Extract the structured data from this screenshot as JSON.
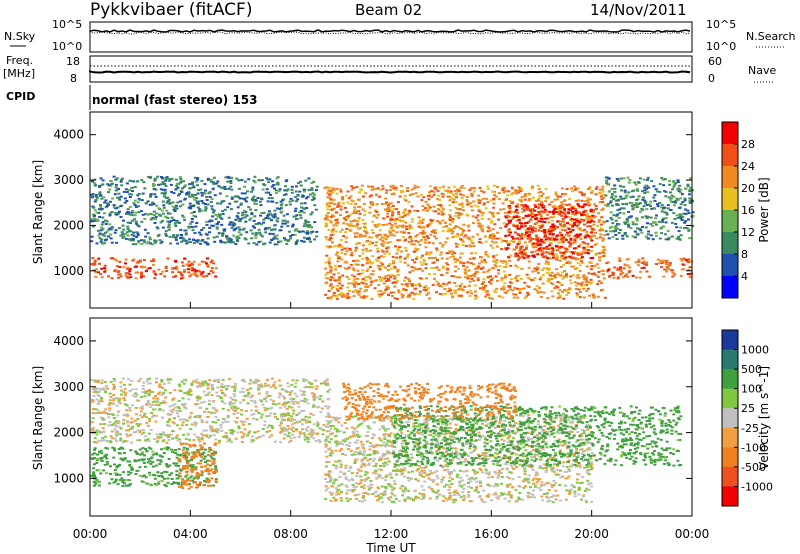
{
  "header": {
    "title": "Pykkvibaer (fitACF)",
    "beam": "Beam 02",
    "date": "14/Nov/2011"
  },
  "params": {
    "nsky_label": "N.Sky",
    "nsearch_label": "N.Search",
    "nsky_ticks": [
      "10^5",
      "10^0"
    ],
    "nsearch_ticks": [
      "10^5",
      "10^0"
    ],
    "freq_label": "Freq.",
    "freq_unit": "[MHz]",
    "freq_ticks": [
      "18",
      "8"
    ],
    "nave_label": "Nave",
    "nave_ticks": [
      "60",
      "0"
    ],
    "cpid_label": "CPID",
    "cpid_text": "normal (fast stereo) 153"
  },
  "axes": {
    "ylabel": "Slant Range [km]",
    "yticks": [
      "4000",
      "3000",
      "2000",
      "1000"
    ],
    "xticks": [
      "00:00",
      "04:00",
      "08:00",
      "12:00",
      "16:00",
      "20:00",
      "00:00"
    ],
    "xlabel": "Time UT"
  },
  "colors": {
    "power": [
      "#0000ff",
      "#2050b0",
      "#3a8a60",
      "#68b050",
      "#e8c020",
      "#f08a20",
      "#f05018",
      "#f00000"
    ],
    "velocity": [
      "#1a3a9a",
      "#2a7a70",
      "#40a040",
      "#80c840",
      "#c0c0c0",
      "#f0a040",
      "#f08020",
      "#f05020",
      "#f00000"
    ],
    "ground_scatter": "#c0c0c0"
  },
  "chart_data": [
    {
      "type": "heatmap",
      "title": "Power",
      "ylabel": "Slant Range [km]",
      "xlabel": "",
      "xlim": [
        0,
        24
      ],
      "ylim": [
        180,
        4500
      ],
      "colorbar": {
        "label": "Power [dB]",
        "range": [
          0,
          32
        ],
        "ticks": [
          "28",
          "24",
          "20",
          "16",
          "12",
          "8",
          "4"
        ]
      },
      "echo_regions": [
        {
          "t": [
            0.0,
            5.0
          ],
          "range_km": [
            850,
            1300
          ],
          "value_db": 26
        },
        {
          "t": [
            0.0,
            9.0
          ],
          "range_km": [
            1600,
            3100
          ],
          "value_db": 9
        },
        {
          "t": [
            9.3,
            20.5
          ],
          "range_km": [
            400,
            2900
          ],
          "value_db": 22
        },
        {
          "t": [
            16.5,
            20.0
          ],
          "range_km": [
            1300,
            2500
          ],
          "value_db": 29
        },
        {
          "t": [
            20.5,
            24.0
          ],
          "range_km": [
            850,
            1300
          ],
          "value_db": 25
        },
        {
          "t": [
            20.5,
            24.0
          ],
          "range_km": [
            1700,
            3100
          ],
          "value_db": 10
        }
      ]
    },
    {
      "type": "heatmap",
      "title": "Velocity",
      "ylabel": "Slant Range [km]",
      "xlabel": "Time UT",
      "xlim": [
        0,
        24
      ],
      "ylim": [
        180,
        4500
      ],
      "colorbar": {
        "label": "Velocity [m s^-1]",
        "ticks": [
          "1000",
          "500",
          "100",
          "25",
          "-25",
          "-100",
          "-500",
          "-1000"
        ]
      },
      "echo_regions": [
        {
          "t": [
            0.0,
            5.0
          ],
          "range_km": [
            850,
            1700
          ],
          "value_ms": 150
        },
        {
          "t": [
            3.5,
            5.0
          ],
          "range_km": [
            800,
            1800
          ],
          "value_ms": -300
        },
        {
          "t": [
            0.0,
            9.5
          ],
          "range_km": [
            1800,
            3200
          ],
          "value_ms": 0
        },
        {
          "t": [
            9.3,
            20.0
          ],
          "range_km": [
            500,
            2400
          ],
          "value_ms": 0
        },
        {
          "t": [
            12.0,
            23.5
          ],
          "range_km": [
            1300,
            2600
          ],
          "value_ms": 150
        },
        {
          "t": [
            10.0,
            17.0
          ],
          "range_km": [
            2300,
            3100
          ],
          "value_ms": -150
        }
      ]
    }
  ]
}
